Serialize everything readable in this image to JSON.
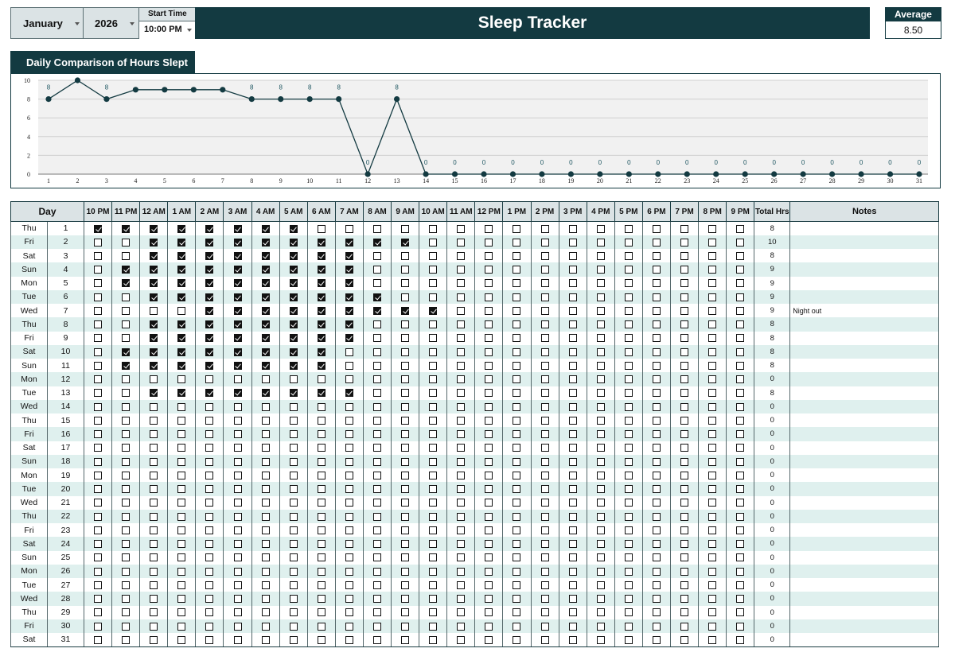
{
  "header": {
    "month": "January",
    "year": "2026",
    "start_time_label": "Start Time",
    "start_time_value": "10:00 PM",
    "title": "Sleep Tracker",
    "average_label": "Average",
    "average_value": "8.50"
  },
  "chart_data": {
    "type": "line",
    "title": "Daily Comparison of Hours Slept",
    "x": [
      1,
      2,
      3,
      4,
      5,
      6,
      7,
      8,
      9,
      10,
      11,
      12,
      13,
      14,
      15,
      16,
      17,
      18,
      19,
      20,
      21,
      22,
      23,
      24,
      25,
      26,
      27,
      28,
      29,
      30,
      31
    ],
    "values": [
      8,
      10,
      8,
      9,
      9,
      9,
      9,
      8,
      8,
      8,
      8,
      0,
      8,
      0,
      0,
      0,
      0,
      0,
      0,
      0,
      0,
      0,
      0,
      0,
      0,
      0,
      0,
      0,
      0,
      0,
      0
    ],
    "data_labels": [
      "8",
      "",
      "8",
      "",
      "",
      "",
      "",
      "8",
      "8",
      "8",
      "8",
      "0",
      "8",
      "0",
      "0",
      "0",
      "0",
      "0",
      "0",
      "0",
      "0",
      "0",
      "0",
      "0",
      "0",
      "0",
      "0",
      "0",
      "0",
      "0",
      "0"
    ],
    "yticks": [
      0,
      2,
      4,
      6,
      8,
      10
    ],
    "ylim": [
      0,
      10
    ],
    "grid": true,
    "line_color": "#133a41"
  },
  "table": {
    "day_header": "Day",
    "hours": [
      "10 PM",
      "11 PM",
      "12 AM",
      "1 AM",
      "2 AM",
      "3 AM",
      "4 AM",
      "5 AM",
      "6 AM",
      "7 AM",
      "8 AM",
      "9 AM",
      "10 AM",
      "11 AM",
      "12 PM",
      "1 PM",
      "2 PM",
      "3 PM",
      "4 PM",
      "5 PM",
      "6 PM",
      "7 PM",
      "8 PM",
      "9 PM"
    ],
    "total_header": "Total Hrs",
    "notes_header": "Notes",
    "rows": [
      {
        "dow": "Thu",
        "date": "1",
        "checks": "111111110000000000000000",
        "total": "8",
        "note": ""
      },
      {
        "dow": "Fri",
        "date": "2",
        "checks": "001111111111000000000000",
        "total": "10",
        "note": ""
      },
      {
        "dow": "Sat",
        "date": "3",
        "checks": "001111111100000000000000",
        "total": "8",
        "note": ""
      },
      {
        "dow": "Sun",
        "date": "4",
        "checks": "011111111100000000000000",
        "total": "9",
        "note": ""
      },
      {
        "dow": "Mon",
        "date": "5",
        "checks": "011111111100000000000000",
        "total": "9",
        "note": ""
      },
      {
        "dow": "Tue",
        "date": "6",
        "checks": "001111111110000000000000",
        "total": "9",
        "note": ""
      },
      {
        "dow": "Wed",
        "date": "7",
        "checks": "000011111111100000000000",
        "total": "9",
        "note": "Night out"
      },
      {
        "dow": "Thu",
        "date": "8",
        "checks": "001111111100000000000000",
        "total": "8",
        "note": ""
      },
      {
        "dow": "Fri",
        "date": "9",
        "checks": "001111111100000000000000",
        "total": "8",
        "note": ""
      },
      {
        "dow": "Sat",
        "date": "10",
        "checks": "011111111000000000000000",
        "total": "8",
        "note": ""
      },
      {
        "dow": "Sun",
        "date": "11",
        "checks": "011111111000000000000000",
        "total": "8",
        "note": ""
      },
      {
        "dow": "Mon",
        "date": "12",
        "checks": "000000000000000000000000",
        "total": "0",
        "note": ""
      },
      {
        "dow": "Tue",
        "date": "13",
        "checks": "001111111100000000000000",
        "total": "8",
        "note": ""
      },
      {
        "dow": "Wed",
        "date": "14",
        "checks": "000000000000000000000000",
        "total": "0",
        "note": ""
      },
      {
        "dow": "Thu",
        "date": "15",
        "checks": "000000000000000000000000",
        "total": "0",
        "note": ""
      },
      {
        "dow": "Fri",
        "date": "16",
        "checks": "000000000000000000000000",
        "total": "0",
        "note": ""
      },
      {
        "dow": "Sat",
        "date": "17",
        "checks": "000000000000000000000000",
        "total": "0",
        "note": ""
      },
      {
        "dow": "Sun",
        "date": "18",
        "checks": "000000000000000000000000",
        "total": "0",
        "note": ""
      },
      {
        "dow": "Mon",
        "date": "19",
        "checks": "000000000000000000000000",
        "total": "0",
        "note": ""
      },
      {
        "dow": "Tue",
        "date": "20",
        "checks": "000000000000000000000000",
        "total": "0",
        "note": ""
      },
      {
        "dow": "Wed",
        "date": "21",
        "checks": "000000000000000000000000",
        "total": "0",
        "note": ""
      },
      {
        "dow": "Thu",
        "date": "22",
        "checks": "000000000000000000000000",
        "total": "0",
        "note": ""
      },
      {
        "dow": "Fri",
        "date": "23",
        "checks": "000000000000000000000000",
        "total": "0",
        "note": ""
      },
      {
        "dow": "Sat",
        "date": "24",
        "checks": "000000000000000000000000",
        "total": "0",
        "note": ""
      },
      {
        "dow": "Sun",
        "date": "25",
        "checks": "000000000000000000000000",
        "total": "0",
        "note": ""
      },
      {
        "dow": "Mon",
        "date": "26",
        "checks": "000000000000000000000000",
        "total": "0",
        "note": ""
      },
      {
        "dow": "Tue",
        "date": "27",
        "checks": "000000000000000000000000",
        "total": "0",
        "note": ""
      },
      {
        "dow": "Wed",
        "date": "28",
        "checks": "000000000000000000000000",
        "total": "0",
        "note": ""
      },
      {
        "dow": "Thu",
        "date": "29",
        "checks": "000000000000000000000000",
        "total": "0",
        "note": ""
      },
      {
        "dow": "Fri",
        "date": "30",
        "checks": "000000000000000000000000",
        "total": "0",
        "note": ""
      },
      {
        "dow": "Sat",
        "date": "31",
        "checks": "000000000000000000000000",
        "total": "0",
        "note": ""
      }
    ]
  }
}
